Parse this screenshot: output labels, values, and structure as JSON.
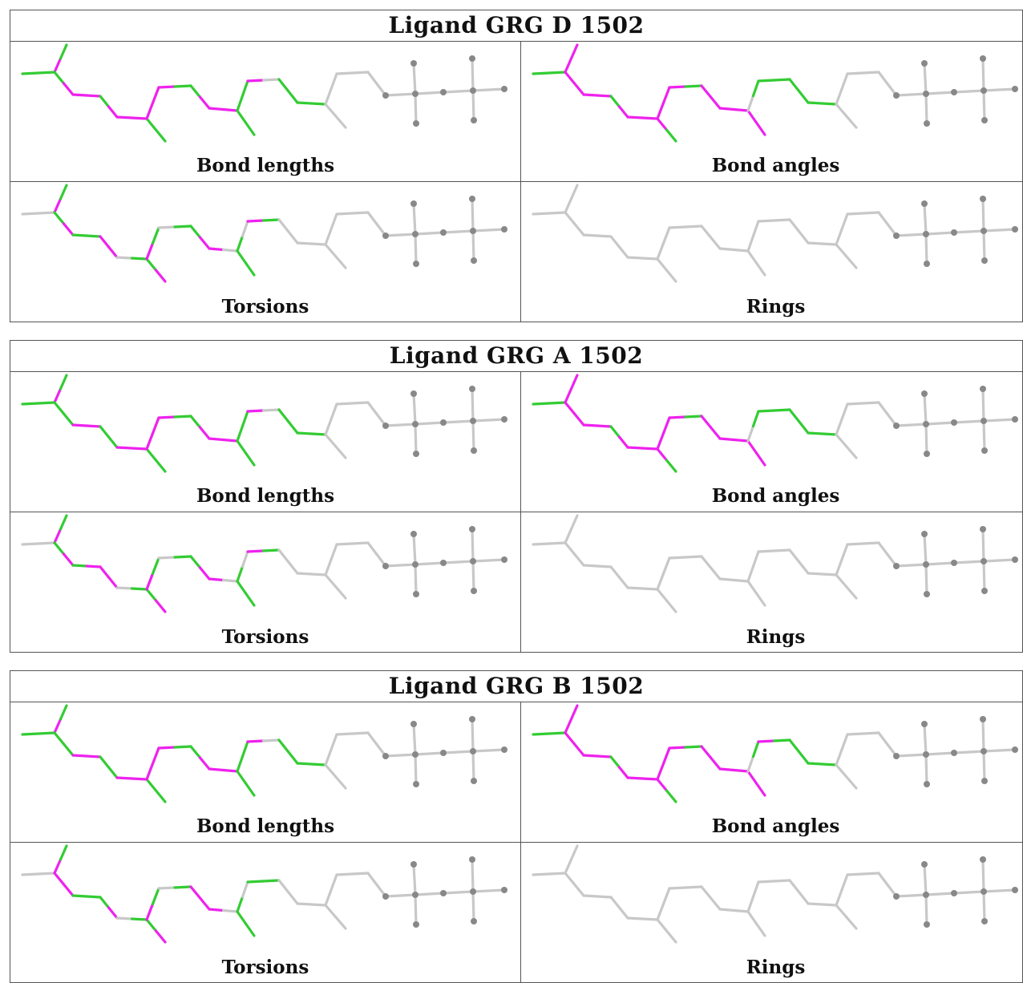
{
  "colors": {
    "green": "#33cc33",
    "magenta": "#ee22ee",
    "grey": "#c8c8c8",
    "atom": "#888888"
  },
  "panels": [
    {
      "title": "Ligand GRG D 1502",
      "cells": [
        {
          "label": "Bond lengths",
          "colors": [
            "G",
            "G",
            "M",
            "G",
            "G",
            "M",
            "M",
            "M",
            "G",
            "M",
            "M",
            "M",
            "G",
            "G",
            "M",
            "M",
            "M",
            "G",
            "G",
            "M",
            "M",
            "M",
            "G",
            "G",
            "G",
            "G",
            "M",
            "W",
            "G",
            "G",
            "G",
            "G"
          ]
        },
        {
          "label": "Bond angles",
          "colors": [
            "G",
            "G",
            "M",
            "M",
            "M",
            "M",
            "M",
            "M",
            "G",
            "M",
            "M",
            "M",
            "M",
            "G",
            "M",
            "M",
            "M",
            "G",
            "M",
            "M",
            "M",
            "M",
            "M",
            "M",
            "W",
            "G",
            "G",
            "G",
            "G",
            "G",
            "G",
            "G"
          ]
        },
        {
          "label": "Torsions",
          "colors": [
            "W",
            "W",
            "M",
            "G",
            "G",
            "M",
            "G",
            "G",
            "M",
            "M",
            "W",
            "G",
            "G",
            "M",
            "M",
            "G",
            "W",
            "G",
            "G",
            "M",
            "M",
            "W",
            "G",
            "G",
            "G",
            "W",
            "M",
            "G",
            "W",
            "W",
            "W",
            "W"
          ]
        },
        {
          "label": "Rings",
          "colors": [
            "W",
            "W",
            "W",
            "W",
            "W",
            "W",
            "W",
            "W",
            "W",
            "W",
            "W",
            "W",
            "W",
            "W",
            "W",
            "W",
            "W",
            "W",
            "W",
            "W",
            "W",
            "W",
            "W",
            "W",
            "W",
            "W",
            "W",
            "W",
            "W",
            "W",
            "W",
            "W"
          ]
        }
      ]
    },
    {
      "title": "Ligand GRG A 1502",
      "cells": [
        {
          "label": "Bond lengths",
          "colors": [
            "G",
            "G",
            "M",
            "G",
            "G",
            "G",
            "M",
            "M",
            "G",
            "G",
            "M",
            "M",
            "G",
            "G",
            "M",
            "M",
            "M",
            "G",
            "G",
            "M",
            "M",
            "M",
            "G",
            "G",
            "G",
            "G",
            "M",
            "W",
            "G",
            "G",
            "G",
            "G"
          ]
        },
        {
          "label": "Bond angles",
          "colors": [
            "G",
            "G",
            "M",
            "M",
            "M",
            "M",
            "M",
            "M",
            "G",
            "M",
            "M",
            "M",
            "M",
            "G",
            "M",
            "M",
            "M",
            "G",
            "M",
            "M",
            "M",
            "M",
            "M",
            "M",
            "W",
            "G",
            "G",
            "G",
            "G",
            "G",
            "G",
            "G"
          ]
        },
        {
          "label": "Torsions",
          "colors": [
            "W",
            "W",
            "M",
            "G",
            "G",
            "M",
            "G",
            "M",
            "M",
            "M",
            "W",
            "G",
            "G",
            "M",
            "M",
            "G",
            "W",
            "G",
            "G",
            "M",
            "M",
            "W",
            "G",
            "G",
            "G",
            "W",
            "M",
            "G",
            "W",
            "W",
            "W",
            "W"
          ]
        },
        {
          "label": "Rings",
          "colors": [
            "W",
            "W",
            "W",
            "W",
            "W",
            "W",
            "W",
            "W",
            "W",
            "W",
            "W",
            "W",
            "W",
            "W",
            "W",
            "W",
            "W",
            "W",
            "W",
            "W",
            "W",
            "W",
            "W",
            "W",
            "W",
            "W",
            "W",
            "W",
            "W",
            "W",
            "W",
            "W"
          ]
        }
      ]
    },
    {
      "title": "Ligand GRG B 1502",
      "cells": [
        {
          "label": "Bond lengths",
          "colors": [
            "G",
            "G",
            "M",
            "G",
            "G",
            "G",
            "M",
            "M",
            "G",
            "G",
            "M",
            "M",
            "G",
            "G",
            "M",
            "M",
            "M",
            "G",
            "G",
            "M",
            "M",
            "M",
            "G",
            "G",
            "G",
            "G",
            "M",
            "W",
            "G",
            "G",
            "G",
            "G"
          ]
        },
        {
          "label": "Bond angles",
          "colors": [
            "G",
            "G",
            "M",
            "M",
            "M",
            "M",
            "M",
            "M",
            "G",
            "M",
            "M",
            "M",
            "M",
            "G",
            "M",
            "M",
            "M",
            "G",
            "M",
            "M",
            "M",
            "M",
            "M",
            "M",
            "W",
            "G",
            "M",
            "G",
            "G",
            "G",
            "G",
            "G"
          ]
        },
        {
          "label": "Torsions",
          "colors": [
            "W",
            "W",
            "M",
            "G",
            "M",
            "M",
            "G",
            "G",
            "G",
            "M",
            "W",
            "G",
            "G",
            "M",
            "M",
            "G",
            "W",
            "G",
            "M",
            "M",
            "M",
            "W",
            "G",
            "G",
            "G",
            "W",
            "G",
            "G",
            "W",
            "W",
            "W",
            "W"
          ]
        },
        {
          "label": "Rings",
          "colors": [
            "W",
            "W",
            "W",
            "W",
            "W",
            "W",
            "W",
            "W",
            "W",
            "W",
            "W",
            "W",
            "W",
            "W",
            "W",
            "W",
            "W",
            "W",
            "W",
            "W",
            "W",
            "W",
            "W",
            "W",
            "W",
            "W",
            "W",
            "W",
            "W",
            "W",
            "W",
            "W"
          ]
        }
      ]
    }
  ]
}
